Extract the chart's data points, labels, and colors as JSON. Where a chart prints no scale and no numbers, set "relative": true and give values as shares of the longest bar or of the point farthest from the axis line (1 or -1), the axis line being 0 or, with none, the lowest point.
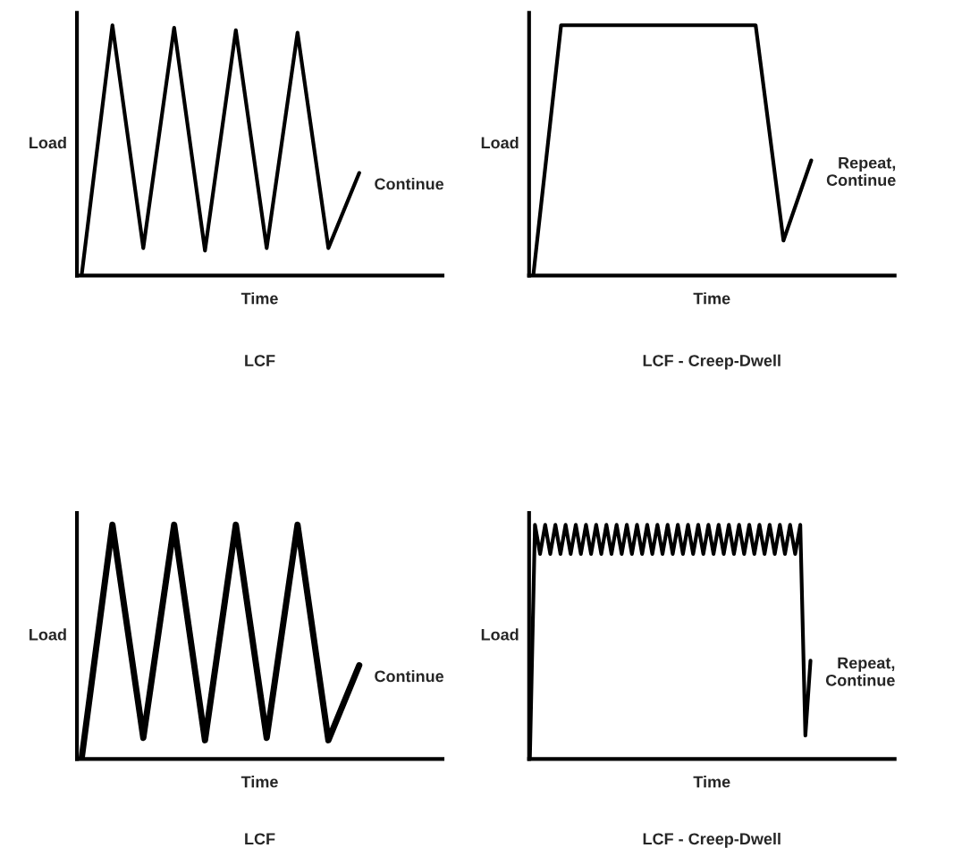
{
  "chart_data": [
    {
      "type": "line",
      "title": "LCF",
      "xlabel": "Time",
      "ylabel": "Load",
      "relative": true,
      "annotations": [
        "Continue"
      ],
      "categories": [
        null,
        null,
        null,
        null,
        null,
        null,
        null,
        null,
        null,
        null
      ],
      "series": [
        {
          "color": "#000000",
          "values": [
            0,
            1,
            0.11,
            0.99,
            0.1,
            0.98,
            0.11,
            0.97,
            0.11,
            0.41
          ]
        }
      ]
    },
    {
      "type": "line",
      "title": "LCF - Creep-Dwell",
      "xlabel": "Time",
      "ylabel": "Load",
      "relative": true,
      "annotations": [
        "Repeat,\nContinue"
      ],
      "categories": [
        null,
        null,
        null,
        null,
        null,
        null,
        null,
        null,
        null,
        null,
        null
      ],
      "series": [
        {
          "color": "#000000",
          "values": [
            0,
            1,
            1,
            1,
            1,
            1,
            1,
            1,
            1,
            0.14,
            0.46
          ]
        }
      ]
    },
    {
      "type": "line",
      "title": "LCF",
      "xlabel": "Time",
      "ylabel": "Load",
      "relative": true,
      "annotations": [
        "Continue"
      ],
      "categories": [
        null,
        null,
        null,
        null,
        null,
        null,
        null,
        null,
        null,
        null
      ],
      "series": [
        {
          "color": "#000000",
          "values": [
            0,
            1,
            0.09,
            1,
            0.08,
            1,
            0.09,
            1,
            0.08,
            0.4
          ]
        }
      ]
    },
    {
      "type": "line",
      "title": "LCF - Creep-Dwell",
      "xlabel": "Time",
      "ylabel": "Load",
      "relative": true,
      "annotations": [
        "Repeat,\nContinue"
      ],
      "categories": [
        null,
        null,
        null,
        null,
        null,
        null,
        null,
        null,
        null,
        null,
        null,
        null,
        null,
        null,
        null,
        null,
        null,
        null,
        null,
        null,
        null,
        null,
        null,
        null,
        null,
        null,
        null,
        null,
        null,
        null,
        null,
        null,
        null,
        null,
        null,
        null,
        null,
        null,
        null,
        null,
        null,
        null,
        null,
        null,
        null,
        null,
        null,
        null,
        null,
        null,
        null,
        null,
        null,
        null,
        null,
        null
      ],
      "series": [
        {
          "color": "#000000",
          "values": [
            0,
            1,
            0.875,
            1,
            0.875,
            1,
            0.875,
            1,
            0.875,
            1,
            0.875,
            1,
            0.875,
            1,
            0.875,
            1,
            0.875,
            1,
            0.875,
            1,
            0.875,
            1,
            0.875,
            1,
            0.875,
            1,
            0.875,
            1,
            0.875,
            1,
            0.875,
            1,
            0.875,
            1,
            0.875,
            1,
            0.875,
            1,
            0.875,
            1,
            0.875,
            1,
            0.875,
            1,
            0.875,
            1,
            0.875,
            1,
            0.875,
            1,
            0.875,
            1,
            0.875,
            1,
            0.1,
            0.42
          ]
        }
      ]
    }
  ]
}
